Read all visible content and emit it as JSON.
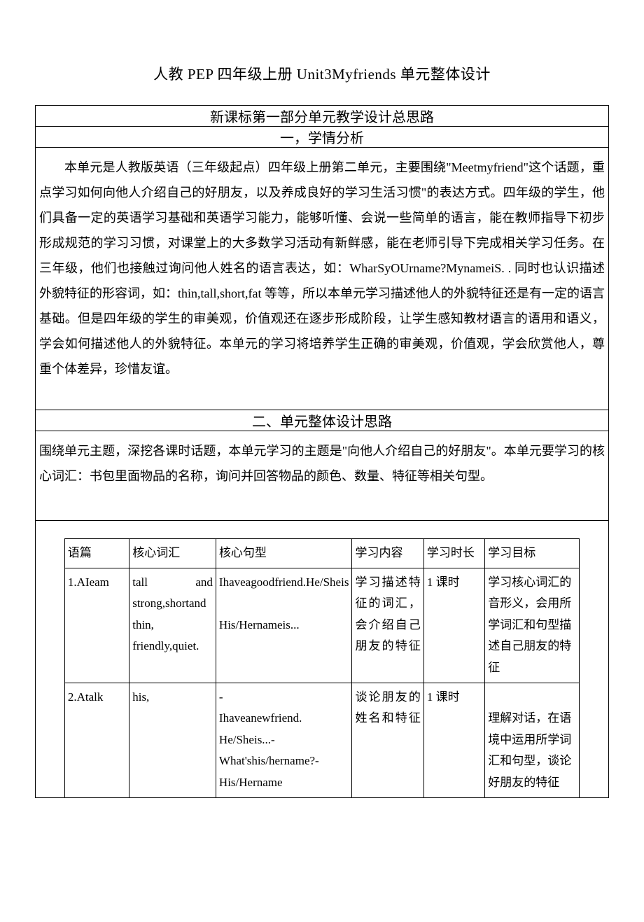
{
  "title": "人教 PEP 四年级上册 Unit3Myfriends 单元整体设计",
  "section1_header": "新课标第一部分单元教学设计总思路",
  "section1_subheader": "一，学情分析",
  "section1_body": "本单元是人教版英语（三年级起点）四年级上册第二单元，主要围绕\"Meetmyfriend\"这个话题，重点学习如何向他人介绍自己的好朋友，以及养成良好的学习生活习惯\"的表达方式。四年级的学生，他们具备一定的英语学习基础和英语学习能力，能够听懂、会说一些简单的语言，能在教师指导下初步形成规范的学习习惯，对课堂上的大多数学习活动有新鲜感，能在老师引导下完成相关学习任务。在三年级，他们也接触过询问他人姓名的语言表达，如：WharSyOUrname?MynameiS. . 同时也认识描述外貌特征的形容词，如：thin,tall,short,fat 等等，所以本单元学习描述他人的外貌特征还是有一定的语言基础。但是四年级的学生的审美观，价值观还在逐步形成阶段，让学生感知教材语言的语用和语义，学会如何描述他人的外貌特征。本单元的学习将培养学生正确的审美观，价值观，学会欣赏他人，尊重个体差异，珍惜友谊。",
  "section2_header": "二、单元整体设计思路",
  "section2_body": "围绕单元主题，深挖各课时话题，本单元学习的主题是\"向他人介绍自己的好朋友\"。本单元要学习的核心词汇：书包里面物品的名称，询问并回答物品的颜色、数量、特征等相关句型。",
  "table": {
    "headers": {
      "col1": "语篇",
      "col2": "核心词汇",
      "col3": "核心句型",
      "col4": "学习内容",
      "col5": "学习时长",
      "col6": "学习目标"
    },
    "rows": [
      {
        "col1": "1.AIeam",
        "col2": "tall and strong,shortand thin, friendly,quiet.",
        "col3": "Ihaveagoodfriend.He/Sheis\n\nHis/Hernameis...",
        "col4": "学习描述特征的词汇，会介绍自己朋友的特征",
        "col5": "1 课时",
        "col6": "学习核心词汇的音形义，会用所学词汇和句型描述自己朋友的特征"
      },
      {
        "col1": "2.Atalk",
        "col2": "his,",
        "col3": "-\nIhaveanewfriend.\nHe/Sheis...-\nWhat'shis/hername?-His/Hername",
        "col4": "谈论朋友的姓名和特征",
        "col5": "1 课时",
        "col6": "\n理解对话，在语境中运用所学词汇和句型，谈论好朋友的特征"
      }
    ]
  }
}
